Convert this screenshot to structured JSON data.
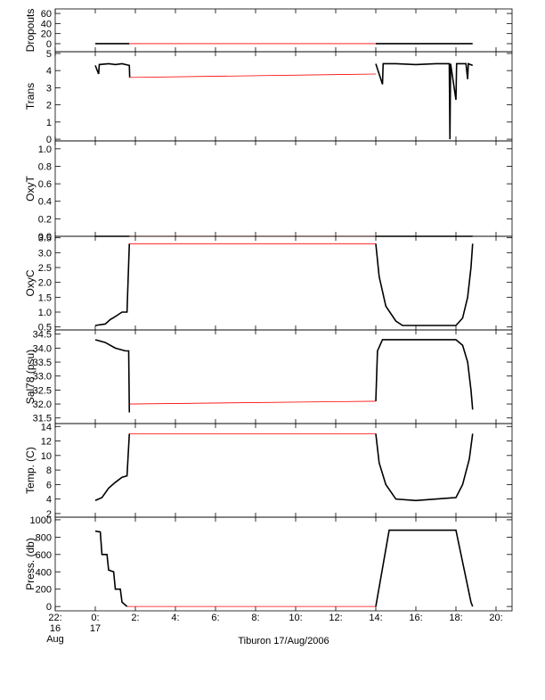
{
  "chart_data": [
    {
      "type": "line",
      "ylabel": "Dropouts",
      "ylim": [
        -16,
        69
      ],
      "yticks": [
        0,
        20,
        40,
        60
      ],
      "series": [
        {
          "color": "#000000",
          "x": [
            "2006-08-17T00:00",
            "2006-08-17T01:42",
            null,
            "2006-08-17T14:00",
            "2006-08-17T18:50"
          ],
          "values": [
            0,
            0,
            null,
            0,
            0
          ]
        },
        {
          "color": "#ff0000",
          "x": [
            "2006-08-17T01:42",
            "2006-08-17T14:00"
          ],
          "values": [
            0,
            0
          ]
        }
      ]
    },
    {
      "type": "line",
      "ylabel": "Trans",
      "ylim": [
        -0.1,
        5.1
      ],
      "yticks": [
        0,
        1,
        2,
        3,
        4,
        5
      ],
      "series": [
        {
          "color": "#000000",
          "x": [
            "2006-08-17T00:00",
            "2006-08-17T00:10",
            "2006-08-17T00:12",
            "2006-08-17T00:40",
            "2006-08-17T01:00",
            "2006-08-17T01:20",
            "2006-08-17T01:42",
            "2006-08-17T01:43",
            null,
            "2006-08-17T14:00",
            "2006-08-17T14:20",
            "2006-08-17T14:22",
            "2006-08-17T15:00",
            "2006-08-17T16:00",
            "2006-08-17T17:00",
            "2006-08-17T17:40",
            "2006-08-17T17:42",
            "2006-08-17T17:44",
            "2006-08-17T18:00",
            "2006-08-17T18:02",
            "2006-08-17T18:30",
            "2006-08-17T18:35",
            "2006-08-17T18:37",
            "2006-08-17T18:50"
          ],
          "values": [
            4.3,
            3.8,
            4.35,
            4.4,
            4.35,
            4.4,
            4.3,
            3.6,
            null,
            4.4,
            3.2,
            4.4,
            4.4,
            4.35,
            4.4,
            4.4,
            0,
            4.4,
            2.3,
            4.4,
            4.4,
            3.5,
            4.4,
            4.3
          ]
        },
        {
          "color": "#ff0000",
          "x": [
            "2006-08-17T01:43",
            "2006-08-17T14:00"
          ],
          "values": [
            3.6,
            3.8
          ]
        }
      ]
    },
    {
      "type": "line",
      "ylabel": "OxyT",
      "ylim": [
        0,
        1.09
      ],
      "yticks": [
        {
          "value": 0,
          "label": "0.0"
        },
        0.2,
        0.4,
        0.6,
        0.8,
        {
          "value": 1,
          "label": "1.0"
        }
      ],
      "series": [
        {
          "color": "#000000",
          "x": [
            "2006-08-17T00:00",
            "2006-08-17T01:42",
            null,
            "2006-08-17T14:00",
            "2006-08-17T18:50"
          ],
          "values": [
            0,
            0,
            null,
            0,
            0
          ]
        },
        {
          "color": "#ff0000",
          "x": [
            "2006-08-17T01:42",
            "2006-08-17T14:00"
          ],
          "values": [
            0,
            0
          ]
        }
      ]
    },
    {
      "type": "line",
      "ylabel": "OxyC",
      "ylim": [
        0.4,
        3.55
      ],
      "yticks": [
        0.5,
        {
          "value": 1,
          "label": "1.0"
        },
        1.5,
        {
          "value": 2,
          "label": "2.0"
        },
        2.5,
        {
          "value": 3,
          "label": "3.0"
        },
        3.5
      ],
      "series": [
        {
          "color": "#000000",
          "x": [
            "2006-08-17T00:00",
            "2006-08-17T00:30",
            "2006-08-17T00:45",
            "2006-08-17T01:00",
            "2006-08-17T01:20",
            "2006-08-17T01:35",
            "2006-08-17T01:38",
            "2006-08-17T01:42",
            null,
            "2006-08-17T14:00",
            "2006-08-17T14:10",
            "2006-08-17T14:30",
            "2006-08-17T15:00",
            "2006-08-17T15:20",
            "2006-08-17T18:00",
            "2006-08-17T18:20",
            "2006-08-17T18:35",
            "2006-08-17T18:45",
            "2006-08-17T18:50"
          ],
          "values": [
            0.55,
            0.6,
            0.75,
            0.85,
            1.0,
            1.0,
            2.0,
            3.3,
            null,
            3.3,
            2.2,
            1.2,
            0.7,
            0.55,
            0.55,
            0.8,
            1.5,
            2.5,
            3.3
          ]
        },
        {
          "color": "#ff0000",
          "x": [
            "2006-08-17T01:42",
            "2006-08-17T14:00"
          ],
          "values": [
            3.3,
            3.3
          ]
        }
      ]
    },
    {
      "type": "line",
      "ylabel": "Sal78 (psu)",
      "ylim": [
        31.3,
        34.65
      ],
      "yticks": [
        31.5,
        {
          "value": 32,
          "label": "32.0"
        },
        32.5,
        {
          "value": 33,
          "label": "33.0"
        },
        33.5,
        {
          "value": 34,
          "label": "34.0"
        },
        34.5
      ],
      "series": [
        {
          "color": "#000000",
          "x": [
            "2006-08-17T00:00",
            "2006-08-17T00:30",
            "2006-08-17T01:00",
            "2006-08-17T01:30",
            "2006-08-17T01:40",
            "2006-08-17T01:42",
            null,
            "2006-08-17T14:00",
            "2006-08-17T14:05",
            "2006-08-17T14:20",
            "2006-08-17T18:00",
            "2006-08-17T18:20",
            "2006-08-17T18:35",
            "2006-08-17T18:45",
            "2006-08-17T18:50"
          ],
          "values": [
            34.3,
            34.2,
            34.0,
            33.9,
            33.9,
            31.7,
            null,
            32.1,
            33.9,
            34.3,
            34.3,
            34.1,
            33.5,
            32.5,
            31.8
          ]
        },
        {
          "color": "#ff0000",
          "x": [
            "2006-08-17T01:42",
            "2006-08-17T14:00"
          ],
          "values": [
            32.0,
            32.1
          ]
        }
      ]
    },
    {
      "type": "line",
      "ylabel": "Temp. (C)",
      "ylim": [
        1.5,
        14.4
      ],
      "yticks": [
        2,
        4,
        6,
        8,
        10,
        12,
        14
      ],
      "series": [
        {
          "color": "#000000",
          "x": [
            "2006-08-17T00:00",
            "2006-08-17T00:20",
            "2006-08-17T00:40",
            "2006-08-17T01:00",
            "2006-08-17T01:20",
            "2006-08-17T01:35",
            "2006-08-17T01:42",
            null,
            "2006-08-17T14:00",
            "2006-08-17T14:10",
            "2006-08-17T14:30",
            "2006-08-17T15:00",
            "2006-08-17T16:00",
            "2006-08-17T18:00",
            "2006-08-17T18:20",
            "2006-08-17T18:40",
            "2006-08-17T18:50"
          ],
          "values": [
            3.8,
            4.2,
            5.5,
            6.3,
            7.0,
            7.2,
            13.0,
            null,
            13.0,
            9.0,
            6.0,
            4.0,
            3.8,
            4.2,
            6.0,
            9.5,
            13.0
          ]
        },
        {
          "color": "#ff0000",
          "x": [
            "2006-08-17T01:42",
            "2006-08-17T14:00"
          ],
          "values": [
            13.0,
            13.0
          ]
        }
      ]
    },
    {
      "type": "line",
      "ylabel": "Press. (db)",
      "ylim": [
        -50,
        1030
      ],
      "yticks": [
        0,
        200,
        400,
        600,
        800,
        1000
      ],
      "xlabel": "Tiburon 17/Aug/2006",
      "xlim": [
        "2006-08-16T22:00",
        "2006-08-17T20:48"
      ],
      "xticks": [
        {
          "value": "2006-08-16T22:00",
          "label": "22:\n16\nAug"
        },
        {
          "value": "2006-08-17T00:00",
          "label": "0:\n17"
        },
        {
          "value": "2006-08-17T02:00",
          "label": "2:"
        },
        {
          "value": "2006-08-17T04:00",
          "label": "4:"
        },
        {
          "value": "2006-08-17T06:00",
          "label": "6:"
        },
        {
          "value": "2006-08-17T08:00",
          "label": "8:"
        },
        {
          "value": "2006-08-17T10:00",
          "label": "10:"
        },
        {
          "value": "2006-08-17T12:00",
          "label": "12:"
        },
        {
          "value": "2006-08-17T14:00",
          "label": "14:"
        },
        {
          "value": "2006-08-17T16:00",
          "label": "16:"
        },
        {
          "value": "2006-08-17T18:00",
          "label": "18:"
        },
        {
          "value": "2006-08-17T20:00",
          "label": "20:"
        }
      ],
      "series": [
        {
          "color": "#000000",
          "x": [
            "2006-08-17T00:00",
            "2006-08-17T00:15",
            "2006-08-17T00:20",
            "2006-08-17T00:35",
            "2006-08-17T00:40",
            "2006-08-17T00:55",
            "2006-08-17T01:00",
            "2006-08-17T01:15",
            "2006-08-17T01:20",
            "2006-08-17T01:35",
            null,
            "2006-08-17T14:00",
            "2006-08-17T14:40",
            "2006-08-17T18:00",
            "2006-08-17T18:45",
            "2006-08-17T18:50"
          ],
          "values": [
            870,
            860,
            600,
            600,
            420,
            400,
            200,
            200,
            50,
            0,
            null,
            0,
            880,
            880,
            50,
            0
          ]
        },
        {
          "color": "#ff0000",
          "x": [
            "2006-08-17T01:35",
            "2006-08-17T14:00"
          ],
          "values": [
            0,
            0
          ]
        }
      ]
    }
  ]
}
